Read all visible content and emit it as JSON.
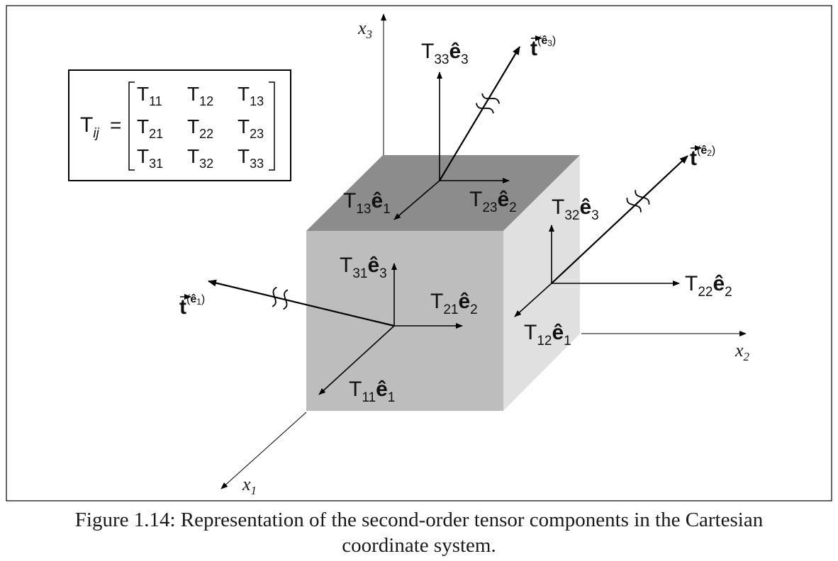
{
  "axes": {
    "x1": "x",
    "x1_sub": "1",
    "x2": "x",
    "x2_sub": "2",
    "x3": "x",
    "x3_sub": "3"
  },
  "matrix": {
    "lhs": "T",
    "lhs_sub": "ij",
    "equals": "=",
    "symbol": "T",
    "subs": [
      [
        "11",
        "12",
        "13"
      ],
      [
        "21",
        "22",
        "23"
      ],
      [
        "31",
        "32",
        "33"
      ]
    ]
  },
  "components": {
    "symbol": "T",
    "basis": "ê",
    "T11": {
      "sub": "11",
      "basis_sub": "1"
    },
    "T12": {
      "sub": "12",
      "basis_sub": "1"
    },
    "T13": {
      "sub": "13",
      "basis_sub": "1"
    },
    "T21": {
      "sub": "21",
      "basis_sub": "2"
    },
    "T22": {
      "sub": "22",
      "basis_sub": "2"
    },
    "T23": {
      "sub": "23",
      "basis_sub": "2"
    },
    "T31": {
      "sub": "31",
      "basis_sub": "3"
    },
    "T32": {
      "sub": "32",
      "basis_sub": "3"
    },
    "T33": {
      "sub": "33",
      "basis_sub": "3"
    }
  },
  "traction": {
    "symbol": "t",
    "open": "(",
    "close": ")",
    "basis": "ê",
    "t1_sub": "1",
    "t2_sub": "2",
    "t3_sub": "3"
  },
  "colors": {
    "top_face": "#8c8c8c",
    "front_face": "#bdbdbd",
    "right_face": "#e0e0e0",
    "lines": "#000000"
  },
  "caption": {
    "line1": "Figure 1.14: Representation of the second-order tensor components in the Cartesian",
    "line2": "coordinate system."
  }
}
